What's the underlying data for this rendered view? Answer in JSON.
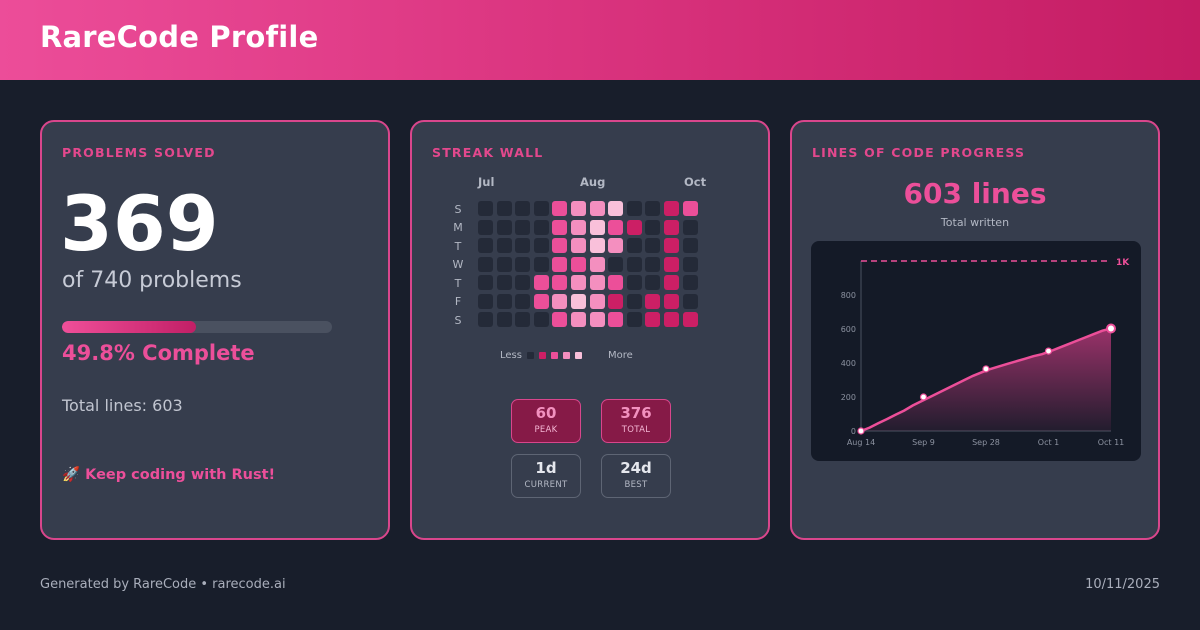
{
  "header": {
    "title": "RareCode Profile"
  },
  "problems": {
    "title": "PROBLEMS SOLVED",
    "count": "369",
    "of_label": "of 740 problems",
    "progress_fraction": 0.498,
    "percent_label": "49.8% Complete",
    "total_lines_label": "Total lines: 603",
    "cta": "🚀 Keep coding with Rust!"
  },
  "streak": {
    "title": "STREAK WALL",
    "months": [
      "Jul",
      "Aug",
      "Oct"
    ],
    "days": [
      "S",
      "M",
      "T",
      "W",
      "T",
      "F",
      "S"
    ],
    "levels": [
      [
        0,
        0,
        0,
        0,
        2,
        3,
        3,
        4,
        0,
        0,
        1,
        2
      ],
      [
        0,
        0,
        0,
        0,
        2,
        3,
        4,
        2,
        1,
        0,
        1,
        0
      ],
      [
        0,
        0,
        0,
        0,
        2,
        3,
        4,
        3,
        0,
        0,
        1,
        0
      ],
      [
        0,
        0,
        0,
        0,
        2,
        2,
        3,
        0,
        0,
        0,
        1,
        0
      ],
      [
        0,
        0,
        0,
        2,
        2,
        3,
        3,
        2,
        0,
        0,
        1,
        0
      ],
      [
        0,
        0,
        0,
        2,
        3,
        4,
        3,
        1,
        0,
        1,
        1,
        0
      ],
      [
        0,
        0,
        0,
        0,
        2,
        3,
        3,
        2,
        0,
        1,
        1,
        1
      ]
    ],
    "level_colors": [
      "#242a38",
      "#cc1f65",
      "#ec4f99",
      "#f48fbf",
      "#f9c0da"
    ],
    "legend": {
      "less": "Less",
      "more": "More"
    },
    "stats": [
      {
        "value": "60",
        "label": "PEAK"
      },
      {
        "value": "376",
        "label": "TOTAL"
      },
      {
        "value": "1d",
        "label": "CURRENT"
      },
      {
        "value": "24d",
        "label": "BEST"
      }
    ]
  },
  "loc": {
    "title": "LINES OF CODE PROGRESS",
    "value_label": "603 lines",
    "sub_label": "Total written"
  },
  "chart_data": {
    "type": "area",
    "x": [
      "Aug 14",
      "Sep 9",
      "Sep 28",
      "Oct 1",
      "Oct 11"
    ],
    "values": [
      0,
      200,
      365,
      470,
      603
    ],
    "line_values": [
      0,
      20,
      45,
      70,
      95,
      120,
      150,
      175,
      200,
      225,
      250,
      275,
      300,
      325,
      345,
      365,
      380,
      395,
      410,
      425,
      440,
      452,
      470,
      490,
      510,
      530,
      550,
      570,
      590,
      603
    ],
    "y_ticks": [
      "0",
      "200",
      "400",
      "600",
      "800"
    ],
    "ylim": [
      0,
      1000
    ],
    "goal": 1000,
    "goal_label": "1K",
    "grid": false
  },
  "footer": {
    "left": "Generated by RareCode • rarecode.ai",
    "right": "10/11/2025"
  }
}
